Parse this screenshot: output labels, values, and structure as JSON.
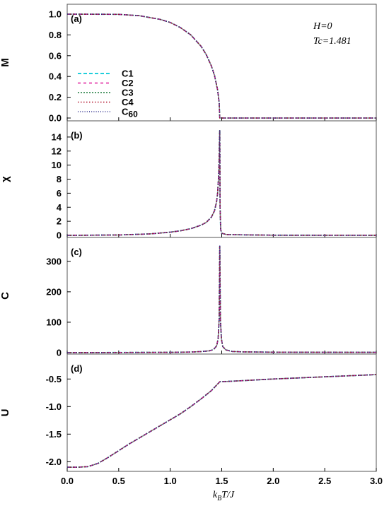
{
  "figure": {
    "xlabel": "kBT/J",
    "xlabel_parts": {
      "k": "k",
      "sub": "B",
      "rest": "T/J"
    },
    "annotations": {
      "field": "H=0",
      "tc": "Tc=1.481"
    },
    "legend": [
      {
        "label": "C1",
        "sub": "",
        "color": "#00c8d8"
      },
      {
        "label": "C2",
        "sub": "",
        "color": "#e0199a"
      },
      {
        "label": "C3",
        "sub": "",
        "color": "#1a7a3a"
      },
      {
        "label": "C4",
        "sub": "",
        "color": "#b0102a"
      },
      {
        "label": "C",
        "sub": "60",
        "color": "#2a2a8a"
      }
    ]
  },
  "chart_data": [
    {
      "type": "line",
      "panel": "(a)",
      "ylabel": "M",
      "xlim": [
        0.0,
        3.0
      ],
      "ylim": [
        0.0,
        1.0
      ],
      "xticks": [
        "0.0",
        "0.5",
        "1.0",
        "1.5",
        "2.0",
        "2.5",
        "3.0"
      ],
      "yticks": [
        "0.0",
        "0.2",
        "0.4",
        "0.6",
        "0.8",
        "1.0"
      ],
      "legend_position": "left",
      "x": [
        0.0,
        0.5,
        0.7,
        0.9,
        1.0,
        1.1,
        1.2,
        1.3,
        1.35,
        1.4,
        1.43,
        1.46,
        1.475,
        1.481,
        1.5,
        2.0,
        2.5,
        3.0
      ],
      "series": [
        {
          "name": "C1",
          "values": [
            1.0,
            0.998,
            0.985,
            0.95,
            0.92,
            0.87,
            0.8,
            0.69,
            0.61,
            0.5,
            0.41,
            0.27,
            0.15,
            0.0,
            0.0,
            0.0,
            0.0,
            0.0
          ]
        },
        {
          "name": "C2",
          "values": [
            1.0,
            0.998,
            0.985,
            0.95,
            0.92,
            0.87,
            0.8,
            0.69,
            0.61,
            0.5,
            0.41,
            0.27,
            0.15,
            0.0,
            0.0,
            0.0,
            0.0,
            0.0
          ]
        },
        {
          "name": "C3",
          "values": [
            1.0,
            0.998,
            0.985,
            0.95,
            0.92,
            0.87,
            0.8,
            0.69,
            0.61,
            0.5,
            0.41,
            0.27,
            0.15,
            0.0,
            0.0,
            0.0,
            0.0,
            0.0
          ]
        },
        {
          "name": "C4",
          "values": [
            1.0,
            0.998,
            0.985,
            0.95,
            0.92,
            0.87,
            0.8,
            0.69,
            0.61,
            0.5,
            0.41,
            0.27,
            0.15,
            0.0,
            0.0,
            0.0,
            0.0,
            0.0
          ]
        },
        {
          "name": "C60",
          "values": [
            1.0,
            0.998,
            0.985,
            0.95,
            0.92,
            0.87,
            0.8,
            0.69,
            0.61,
            0.5,
            0.41,
            0.27,
            0.15,
            0.0,
            0.0,
            0.0,
            0.0,
            0.0
          ]
        }
      ]
    },
    {
      "type": "line",
      "panel": "(b)",
      "ylabel": "χ",
      "xlim": [
        0.0,
        3.0
      ],
      "ylim": [
        0,
        15.5
      ],
      "xticks": [
        "0.0",
        "0.5",
        "1.0",
        "1.5",
        "2.0",
        "2.5",
        "3.0"
      ],
      "yticks": [
        "0",
        "2",
        "4",
        "6",
        "8",
        "10",
        "12",
        "14"
      ],
      "x": [
        0.0,
        0.5,
        0.8,
        1.0,
        1.1,
        1.2,
        1.3,
        1.35,
        1.4,
        1.43,
        1.45,
        1.46,
        1.47,
        1.475,
        1.478,
        1.481,
        1.484,
        1.49,
        1.5,
        1.55,
        2.0,
        3.0
      ],
      "series": [
        {
          "name": "C1",
          "values": [
            0.0,
            0.05,
            0.2,
            0.45,
            0.65,
            0.95,
            1.45,
            1.85,
            2.6,
            3.5,
            4.8,
            6.0,
            8.5,
            11.0,
            13.5,
            15.0,
            4.0,
            0.8,
            0.3,
            0.1,
            0.02,
            0.01
          ]
        },
        {
          "name": "C2",
          "values": [
            0.0,
            0.05,
            0.2,
            0.45,
            0.65,
            0.95,
            1.45,
            1.85,
            2.6,
            3.5,
            4.8,
            6.0,
            8.5,
            11.0,
            13.5,
            15.0,
            4.0,
            0.8,
            0.3,
            0.1,
            0.02,
            0.01
          ]
        },
        {
          "name": "C3",
          "values": [
            0.0,
            0.05,
            0.2,
            0.45,
            0.65,
            0.95,
            1.45,
            1.85,
            2.6,
            3.5,
            4.8,
            6.0,
            8.5,
            11.0,
            13.5,
            15.0,
            4.0,
            0.8,
            0.3,
            0.1,
            0.02,
            0.01
          ]
        },
        {
          "name": "C4",
          "values": [
            0.0,
            0.05,
            0.2,
            0.45,
            0.65,
            0.95,
            1.45,
            1.85,
            2.6,
            3.5,
            4.8,
            6.0,
            8.5,
            11.0,
            13.5,
            15.0,
            4.0,
            0.8,
            0.3,
            0.1,
            0.02,
            0.01
          ]
        },
        {
          "name": "C60",
          "values": [
            0.0,
            0.05,
            0.2,
            0.45,
            0.65,
            0.95,
            1.45,
            1.85,
            2.6,
            3.5,
            4.8,
            6.0,
            8.5,
            11.0,
            13.5,
            15.0,
            4.0,
            0.8,
            0.3,
            0.1,
            0.02,
            0.01
          ]
        }
      ]
    },
    {
      "type": "line",
      "panel": "(c)",
      "ylabel": "C",
      "xlim": [
        0.0,
        3.0
      ],
      "ylim": [
        0,
        360
      ],
      "xticks": [
        "0.0",
        "0.5",
        "1.0",
        "1.5",
        "2.0",
        "2.5",
        "3.0"
      ],
      "yticks": [
        "0",
        "100",
        "200",
        "300"
      ],
      "x": [
        0.0,
        0.5,
        1.0,
        1.2,
        1.3,
        1.38,
        1.42,
        1.45,
        1.465,
        1.475,
        1.481,
        1.487,
        1.497,
        1.51,
        1.54,
        1.6,
        1.7,
        2.0,
        3.0
      ],
      "series": [
        {
          "name": "C1",
          "values": [
            0.0,
            0.5,
            1.0,
            2.0,
            3.5,
            6.0,
            10.0,
            22.0,
            45.0,
            110.0,
            350.0,
            110.0,
            45.0,
            20.0,
            9.0,
            4.0,
            2.5,
            1.5,
            1.0
          ]
        },
        {
          "name": "C2",
          "values": [
            0.0,
            0.5,
            1.0,
            2.0,
            3.5,
            6.0,
            10.0,
            22.0,
            45.0,
            110.0,
            350.0,
            110.0,
            45.0,
            20.0,
            9.0,
            4.0,
            2.5,
            1.5,
            1.0
          ]
        },
        {
          "name": "C3",
          "values": [
            0.0,
            0.5,
            1.0,
            2.0,
            3.5,
            6.0,
            10.0,
            22.0,
            45.0,
            110.0,
            350.0,
            110.0,
            45.0,
            20.0,
            9.0,
            4.0,
            2.5,
            1.5,
            1.0
          ]
        },
        {
          "name": "C4",
          "values": [
            0.0,
            0.5,
            1.0,
            2.0,
            3.5,
            6.0,
            10.0,
            22.0,
            45.0,
            110.0,
            350.0,
            110.0,
            45.0,
            20.0,
            9.0,
            4.0,
            2.5,
            1.5,
            1.0
          ]
        },
        {
          "name": "C60",
          "values": [
            0.0,
            0.5,
            1.0,
            2.0,
            3.5,
            6.0,
            10.0,
            22.0,
            45.0,
            110.0,
            350.0,
            110.0,
            45.0,
            20.0,
            9.0,
            4.0,
            2.5,
            1.5,
            1.0
          ]
        }
      ]
    },
    {
      "type": "line",
      "panel": "(d)",
      "ylabel": "U",
      "xlim": [
        0.0,
        3.0
      ],
      "ylim": [
        -2.15,
        -0.15
      ],
      "xticks": [
        "0.0",
        "0.5",
        "1.0",
        "1.5",
        "2.0",
        "2.5",
        "3.0"
      ],
      "yticks": [
        "-2.0",
        "-1.5",
        "-1.0",
        "-0.5"
      ],
      "x": [
        0.0,
        0.1,
        0.2,
        0.3,
        0.4,
        0.5,
        0.6,
        0.7,
        0.8,
        0.9,
        1.0,
        1.1,
        1.2,
        1.3,
        1.4,
        1.481,
        1.6,
        2.0,
        2.5,
        3.0
      ],
      "series": [
        {
          "name": "C1",
          "values": [
            -2.1,
            -2.1,
            -2.09,
            -2.03,
            -1.92,
            -1.8,
            -1.68,
            -1.57,
            -1.46,
            -1.35,
            -1.24,
            -1.13,
            -1.0,
            -0.86,
            -0.71,
            -0.55,
            -0.54,
            -0.5,
            -0.46,
            -0.42
          ]
        },
        {
          "name": "C2",
          "values": [
            -2.1,
            -2.1,
            -2.09,
            -2.03,
            -1.92,
            -1.8,
            -1.68,
            -1.57,
            -1.46,
            -1.35,
            -1.24,
            -1.13,
            -1.0,
            -0.86,
            -0.71,
            -0.55,
            -0.54,
            -0.5,
            -0.46,
            -0.42
          ]
        },
        {
          "name": "C3",
          "values": [
            -2.1,
            -2.1,
            -2.09,
            -2.03,
            -1.92,
            -1.8,
            -1.68,
            -1.57,
            -1.46,
            -1.35,
            -1.24,
            -1.13,
            -1.0,
            -0.86,
            -0.71,
            -0.55,
            -0.54,
            -0.5,
            -0.46,
            -0.42
          ]
        },
        {
          "name": "C4",
          "values": [
            -2.1,
            -2.1,
            -2.09,
            -2.03,
            -1.92,
            -1.8,
            -1.68,
            -1.57,
            -1.46,
            -1.35,
            -1.24,
            -1.13,
            -1.0,
            -0.86,
            -0.71,
            -0.55,
            -0.54,
            -0.5,
            -0.46,
            -0.42
          ]
        },
        {
          "name": "C60",
          "values": [
            -2.1,
            -2.1,
            -2.09,
            -2.03,
            -1.92,
            -1.8,
            -1.68,
            -1.57,
            -1.46,
            -1.35,
            -1.24,
            -1.13,
            -1.0,
            -0.86,
            -0.71,
            -0.55,
            -0.54,
            -0.5,
            -0.46,
            -0.42
          ]
        }
      ]
    }
  ]
}
